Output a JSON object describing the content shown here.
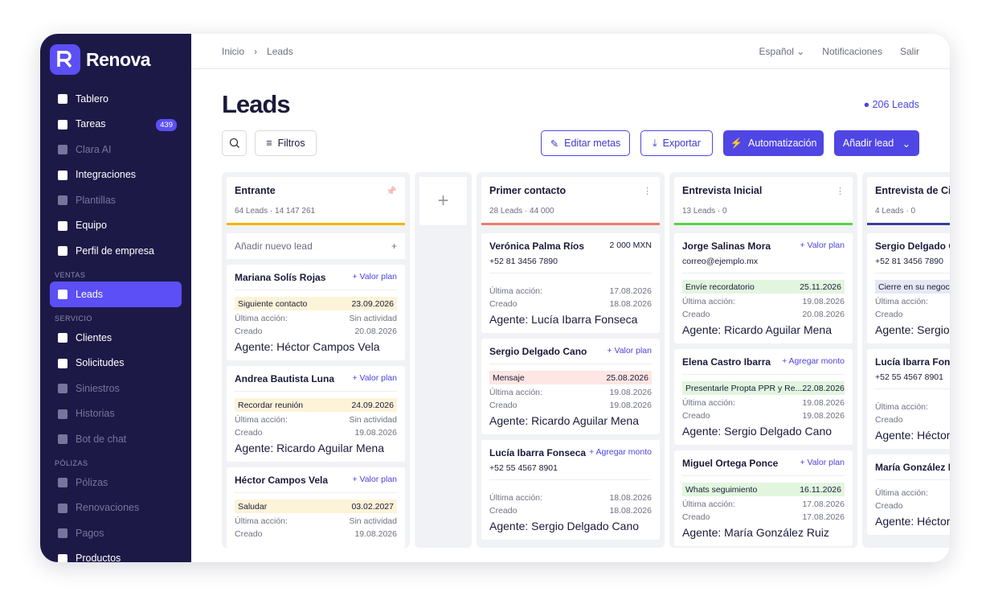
{
  "brand": "Renova",
  "sidebar": [
    {
      "items": [
        {
          "label": "Tablero"
        },
        {
          "label": "Tareas",
          "badge": "439"
        },
        {
          "label": "Clara AI",
          "dim": true
        },
        {
          "label": "Integraciones"
        },
        {
          "label": "Plantillas",
          "dim": true
        },
        {
          "label": "Equipo"
        },
        {
          "label": "Perfil de empresa"
        }
      ]
    },
    {
      "section": "VENTAS",
      "items": [
        {
          "label": "Leads",
          "active": true
        }
      ]
    },
    {
      "section": "SERVICIO",
      "items": [
        {
          "label": "Clientes"
        },
        {
          "label": "Solicitudes"
        },
        {
          "label": "Siniestros",
          "dim": true
        },
        {
          "label": "Historias",
          "dim": true
        },
        {
          "label": "Bot de chat",
          "dim": true
        }
      ]
    },
    {
      "section": "PÓLIZAS",
      "items": [
        {
          "label": "Pólizas",
          "dim": true
        },
        {
          "label": "Renovaciones",
          "dim": true
        },
        {
          "label": "Pagos",
          "dim": true
        },
        {
          "label": "Productos"
        }
      ]
    }
  ],
  "topbar": {
    "breadcrumb": [
      "Inicio",
      "Leads"
    ],
    "links": [
      "Español",
      "Notificaciones",
      "Salir"
    ]
  },
  "header": {
    "title": "Leads",
    "count": "206 Leads"
  },
  "toolbar": {
    "filters": "Filtros",
    "edit": "Editar metas",
    "export": "Exportar",
    "automation": "Automatización",
    "add": "Añadir lead"
  },
  "board": {
    "add_lead": "Añadir nuevo lead",
    "columns": [
      {
        "title": "Entrante",
        "summary": "64 Leads · 14 147 261",
        "color": "#f4b400",
        "pinned": true,
        "cards": [
          {
            "name": "Mariana Solís Rojas",
            "action": "+ Valor plan",
            "tag": {
              "text": "Siguiente contacto",
              "date": "23.09.2026",
              "color": "#fdf3d8"
            },
            "rows": [
              {
                "label": "Última acción:",
                "value": "Sin actividad"
              },
              {
                "label": "Creado",
                "value": "20.08.2026"
              }
            ],
            "agent": "Agente: Héctor Campos Vela"
          },
          {
            "name": "Andrea Bautista Luna",
            "action": "+ Valor plan",
            "tag": {
              "text": "Recordar reunión",
              "date": "24.09.2026",
              "color": "#fdf3d8"
            },
            "rows": [
              {
                "label": "Última acción:",
                "value": "Sin actividad"
              },
              {
                "label": "Creado",
                "value": "19.08.2026"
              }
            ],
            "agent": "Agente: Ricardo Aguilar Mena"
          },
          {
            "name": "Héctor Campos Vela",
            "action": "+ Valor plan",
            "tag": {
              "text": "Saludar",
              "date": "03.02.2027",
              "color": "#fdf3d8"
            },
            "rows": [
              {
                "label": "Última acción:",
                "value": "Sin actividad"
              },
              {
                "label": "Creado",
                "value": "19.08.2026"
              }
            ]
          }
        ]
      },
      {
        "title": "Primer contacto",
        "summary": "28 Leads · 44 000",
        "color": "#f07b6b",
        "cards": [
          {
            "name": "Verónica Palma Ríos",
            "amount": "2 000 MXN",
            "contact": "+52 81 3456 7890",
            "rows": [
              {
                "label": "Última acción:",
                "value": "17.08.2026"
              },
              {
                "label": "Creado",
                "value": "18.08.2026"
              }
            ],
            "agent": "Agente: Lucía Ibarra Fonseca"
          },
          {
            "name": "Sergio Delgado Cano",
            "action": "+ Valor plan",
            "tag": {
              "text": "Mensaje",
              "date": "25.08.2026",
              "color": "#fde6e3"
            },
            "rows": [
              {
                "label": "Última acción:",
                "value": "19.08.2026"
              },
              {
                "label": "Creado",
                "value": "19.08.2026"
              }
            ],
            "agent": "Agente: Ricardo Aguilar Mena"
          },
          {
            "name": "Lucía Ibarra Fonseca",
            "action": "+ Agregar monto",
            "contact": "+52 55 4567 8901",
            "rows": [
              {
                "label": "Última acción:",
                "value": "18.08.2026"
              },
              {
                "label": "Creado",
                "value": "18.08.2026"
              }
            ],
            "agent": "Agente: Sergio Delgado Cano"
          }
        ]
      },
      {
        "title": "Entrevista Inicial",
        "summary": "13 Leads · 0",
        "color": "#5bd14b",
        "cards": [
          {
            "name": "Jorge Salinas Mora",
            "action": "+ Valor plan",
            "contact": "correo@ejemplo.mx",
            "tag": {
              "text": "Envíe recordatorio",
              "date": "25.11.2026",
              "color": "#e2f6df"
            },
            "rows": [
              {
                "label": "Última acción:",
                "value": "19.08.2026"
              },
              {
                "label": "Creado",
                "value": "20.08.2026"
              }
            ],
            "agent": "Agente: Ricardo Aguilar Mena"
          },
          {
            "name": "Elena Castro Ibarra",
            "action": "+ Agregar monto",
            "tag": {
              "text": "Presentarle Propta PPR y Re...",
              "date": "22.08.2026",
              "color": "#e2f6df"
            },
            "rows": [
              {
                "label": "Última acción:",
                "value": "19.08.2026"
              },
              {
                "label": "Creado",
                "value": "19.08.2026"
              }
            ],
            "agent": "Agente: Sergio Delgado Cano"
          },
          {
            "name": "Miguel Ortega Ponce",
            "action": "+ Valor plan",
            "tag": {
              "text": "Whats seguimiento",
              "date": "16.11.2026",
              "color": "#e2f6df"
            },
            "rows": [
              {
                "label": "Última acción:",
                "value": "17.08.2026"
              },
              {
                "label": "Creado",
                "value": "17.08.2026"
              }
            ],
            "agent": "Agente: María González Ruiz"
          }
        ]
      },
      {
        "title": "Entrevista de Ci",
        "summary": "4 Leads · 0",
        "color": "#3a3f9c",
        "cards": [
          {
            "name": "Sergio Delgado C",
            "contact": "+52 81 3456 7890",
            "tag": {
              "text": "Cierre en su negocio",
              "color": "#e6e8f4"
            },
            "rows": [
              {
                "label": "Última acción:"
              },
              {
                "label": "Creado"
              }
            ],
            "agent": "Agente: Sergio"
          },
          {
            "name": "Lucía Ibarra Fons",
            "contact": "+52 55 4567 8901",
            "rows": [
              {
                "label": "Última acción:"
              },
              {
                "label": "Creado"
              }
            ],
            "agent": "Agente: Héctor"
          },
          {
            "name": "María González F",
            "rows": [
              {
                "label": "Última acción:"
              },
              {
                "label": "Creado"
              }
            ],
            "agent": "Agente: Héctor"
          }
        ]
      }
    ]
  }
}
